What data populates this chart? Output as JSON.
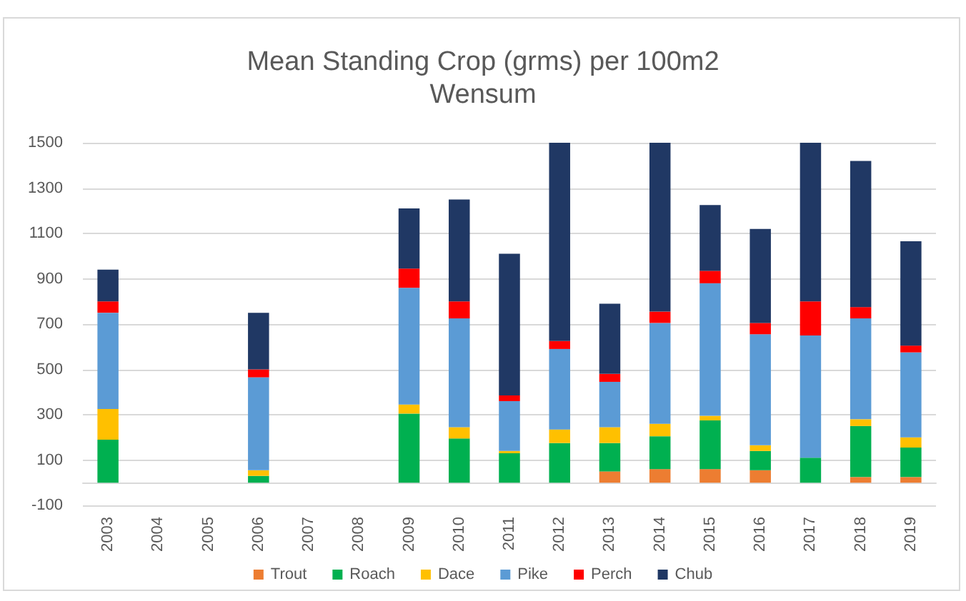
{
  "chart_data": {
    "type": "bar",
    "title": "Mean Standing Crop (grms) per 100m2",
    "subtitle": "Wensum",
    "categories": [
      "2003",
      "2004",
      "2005",
      "2006",
      "2007",
      "2008",
      "2009",
      "2010",
      "2011",
      "2012",
      "2013",
      "2014",
      "2015",
      "2016",
      "2017",
      "2018",
      "2019"
    ],
    "stacked": true,
    "series": [
      {
        "name": "Trout",
        "color": "#ed7d31",
        "values": [
          0,
          null,
          null,
          0,
          null,
          null,
          0,
          0,
          0,
          0,
          50,
          60,
          60,
          55,
          0,
          25,
          25
        ]
      },
      {
        "name": "Roach",
        "color": "#00b050",
        "values": [
          190,
          null,
          null,
          30,
          null,
          null,
          305,
          195,
          130,
          175,
          125,
          145,
          215,
          85,
          110,
          225,
          130
        ]
      },
      {
        "name": "Dace",
        "color": "#ffc000",
        "values": [
          135,
          null,
          null,
          25,
          null,
          null,
          40,
          50,
          10,
          60,
          70,
          55,
          20,
          25,
          0,
          30,
          45
        ]
      },
      {
        "name": "Pike",
        "color": "#5b9bd5",
        "values": [
          425,
          null,
          null,
          410,
          null,
          null,
          515,
          480,
          220,
          355,
          200,
          445,
          585,
          490,
          540,
          445,
          375
        ]
      },
      {
        "name": "Perch",
        "color": "#ff0000",
        "values": [
          50,
          null,
          null,
          35,
          null,
          null,
          85,
          75,
          25,
          35,
          35,
          50,
          55,
          50,
          150,
          50,
          30
        ]
      },
      {
        "name": "Chub",
        "color": "#203864",
        "values": [
          140,
          null,
          null,
          250,
          null,
          null,
          265,
          450,
          625,
          875,
          310,
          745,
          290,
          415,
          700,
          645,
          460
        ]
      }
    ],
    "ylim": [
      -100,
      1500
    ],
    "yticks": [
      -100,
      100,
      300,
      500,
      700,
      900,
      1100,
      1300,
      1500
    ],
    "grid": "y",
    "legend": "bottom"
  }
}
